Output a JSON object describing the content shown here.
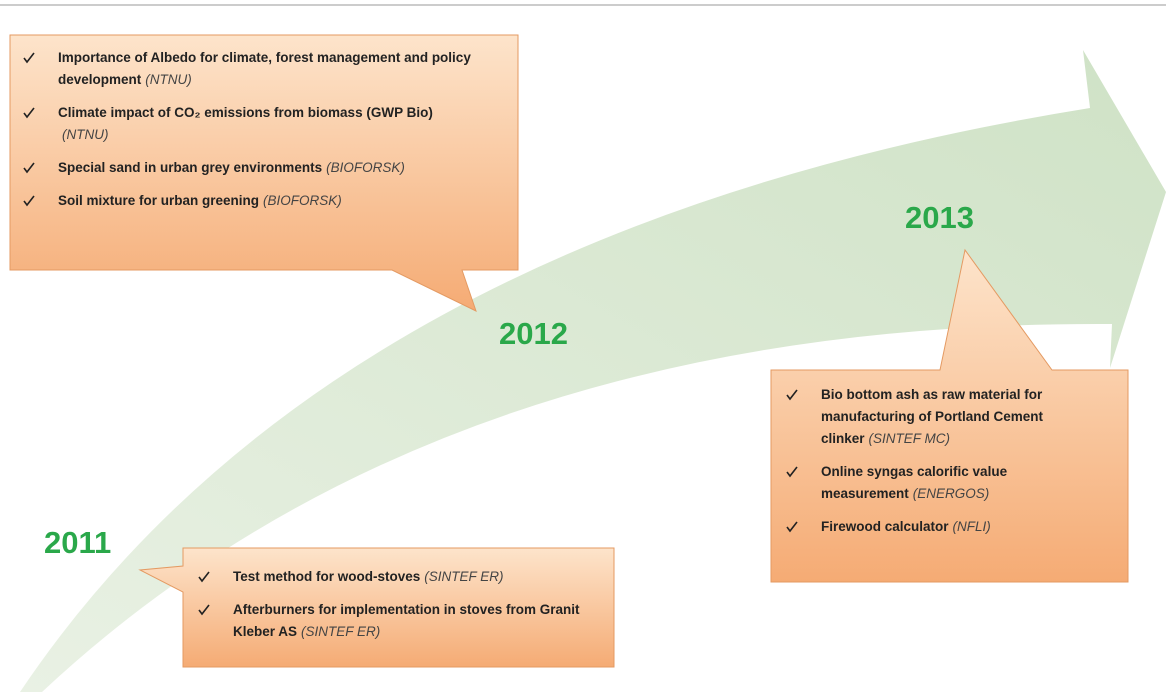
{
  "years": [
    "2011",
    "2012",
    "2013"
  ],
  "boxes": [
    {
      "items": [
        {
          "text": "Importance of Albedo for climate, forest management and policy development",
          "org": "(NTNU)"
        },
        {
          "text": "Climate impact of CO₂ emissions from biomass (GWP Bio)",
          "org": "(NTNU)"
        },
        {
          "text": "Special sand in urban grey environments",
          "org": "(BIOFORSK)"
        },
        {
          "text": "Soil mixture for urban greening",
          "org": "(BIOFORSK)"
        }
      ]
    },
    {
      "items": [
        {
          "text": "Test method for wood-stoves",
          "org": "(SINTEF ER)"
        },
        {
          "text": "Afterburners for implementation in stoves from Granit Kleber AS",
          "org": "(SINTEF ER)"
        }
      ]
    },
    {
      "items": [
        {
          "text": "Bio bottom ash as raw material for manufacturing of Portland Cement clinker",
          "org": "(SINTEF MC)"
        },
        {
          "text": "Online syngas calorific value measurement",
          "org": "(ENERGOS)"
        },
        {
          "text": "Firewood calculator",
          "org": "(NFLI)"
        }
      ]
    }
  ]
}
